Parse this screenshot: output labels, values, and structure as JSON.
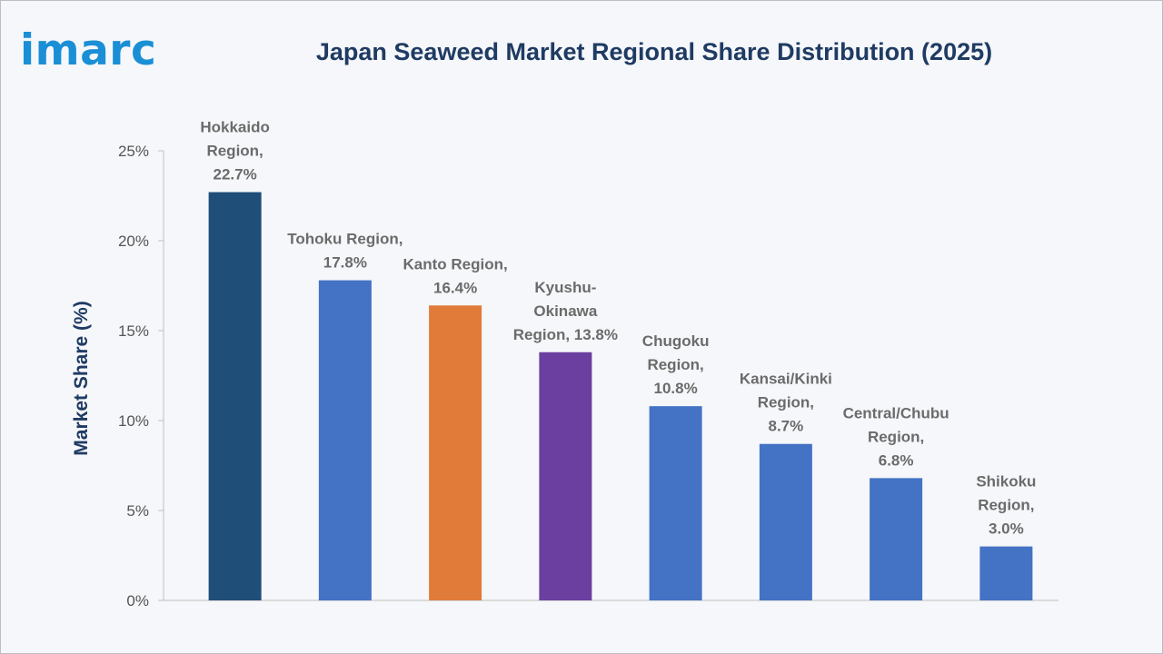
{
  "brand": {
    "logo_text": "imarc",
    "color": "#1a8fd6"
  },
  "chart_data": {
    "type": "bar",
    "title": "Japan Seaweed Market Regional Share Distribution (2025)",
    "xlabel": "",
    "ylabel": "Market Share (%)",
    "ylim": [
      0,
      25
    ],
    "yticks": [
      "0%",
      "5%",
      "10%",
      "15%",
      "20%",
      "25%"
    ],
    "grid": false,
    "categories": [
      "Hokkaido Region",
      "Tohoku Region",
      "Kanto Region",
      "Kyushu-Okinawa Region",
      "Chugoku Region",
      "Kansai/Kinki Region",
      "Central/Chubu Region",
      "Shikoku Region"
    ],
    "values": [
      22.7,
      17.8,
      16.4,
      13.8,
      10.8,
      8.7,
      6.8,
      3.0
    ],
    "colors": [
      "#1f4e79",
      "#4472c4",
      "#e07b39",
      "#6b3fa0",
      "#4472c4",
      "#4472c4",
      "#4472c4",
      "#4472c4"
    ],
    "data_labels": [
      [
        "Hokkaido",
        "Region,",
        "22.7%"
      ],
      [
        "Tohoku Region,",
        "17.8%"
      ],
      [
        "Kanto Region,",
        "16.4%"
      ],
      [
        "Kyushu-",
        "Okinawa",
        "Region, 13.8%"
      ],
      [
        "Chugoku",
        "Region,",
        "10.8%"
      ],
      [
        "Kansai/Kinki",
        "Region,",
        "8.7%"
      ],
      [
        "Central/Chubu",
        "Region,",
        "6.8%"
      ],
      [
        "Shikoku",
        "Region,",
        "3.0%"
      ]
    ]
  }
}
